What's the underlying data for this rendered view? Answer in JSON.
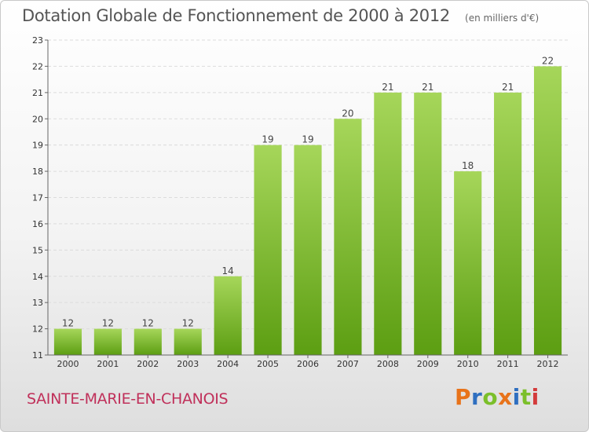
{
  "header": {
    "title": "Dotation Globale de Fonctionnement de 2000 à 2012",
    "unit": "(en milliers d'€)"
  },
  "footer": {
    "commune": "SAINTE-MARIE-EN-CHANOIS",
    "logo": "Proxiti",
    "logo_colors": [
      "#e8731a",
      "#2f6fc0",
      "#7bbf2a",
      "#e8731a",
      "#2f6fc0",
      "#7bbf2a",
      "#d33b3b"
    ]
  },
  "chart_data": {
    "type": "bar",
    "categories": [
      "2000",
      "2001",
      "2002",
      "2003",
      "2004",
      "2005",
      "2006",
      "2007",
      "2008",
      "2009",
      "2010",
      "2011",
      "2012"
    ],
    "values": [
      12,
      12,
      12,
      12,
      14,
      19,
      19,
      20,
      21,
      21,
      18,
      21,
      22
    ],
    "ylim": [
      11,
      23
    ],
    "yticks": [
      11,
      12,
      13,
      14,
      15,
      16,
      17,
      18,
      19,
      20,
      21,
      22,
      23
    ],
    "grid": true,
    "bar_color_top": "#a6d65a",
    "bar_color_bottom": "#5c9e12"
  }
}
